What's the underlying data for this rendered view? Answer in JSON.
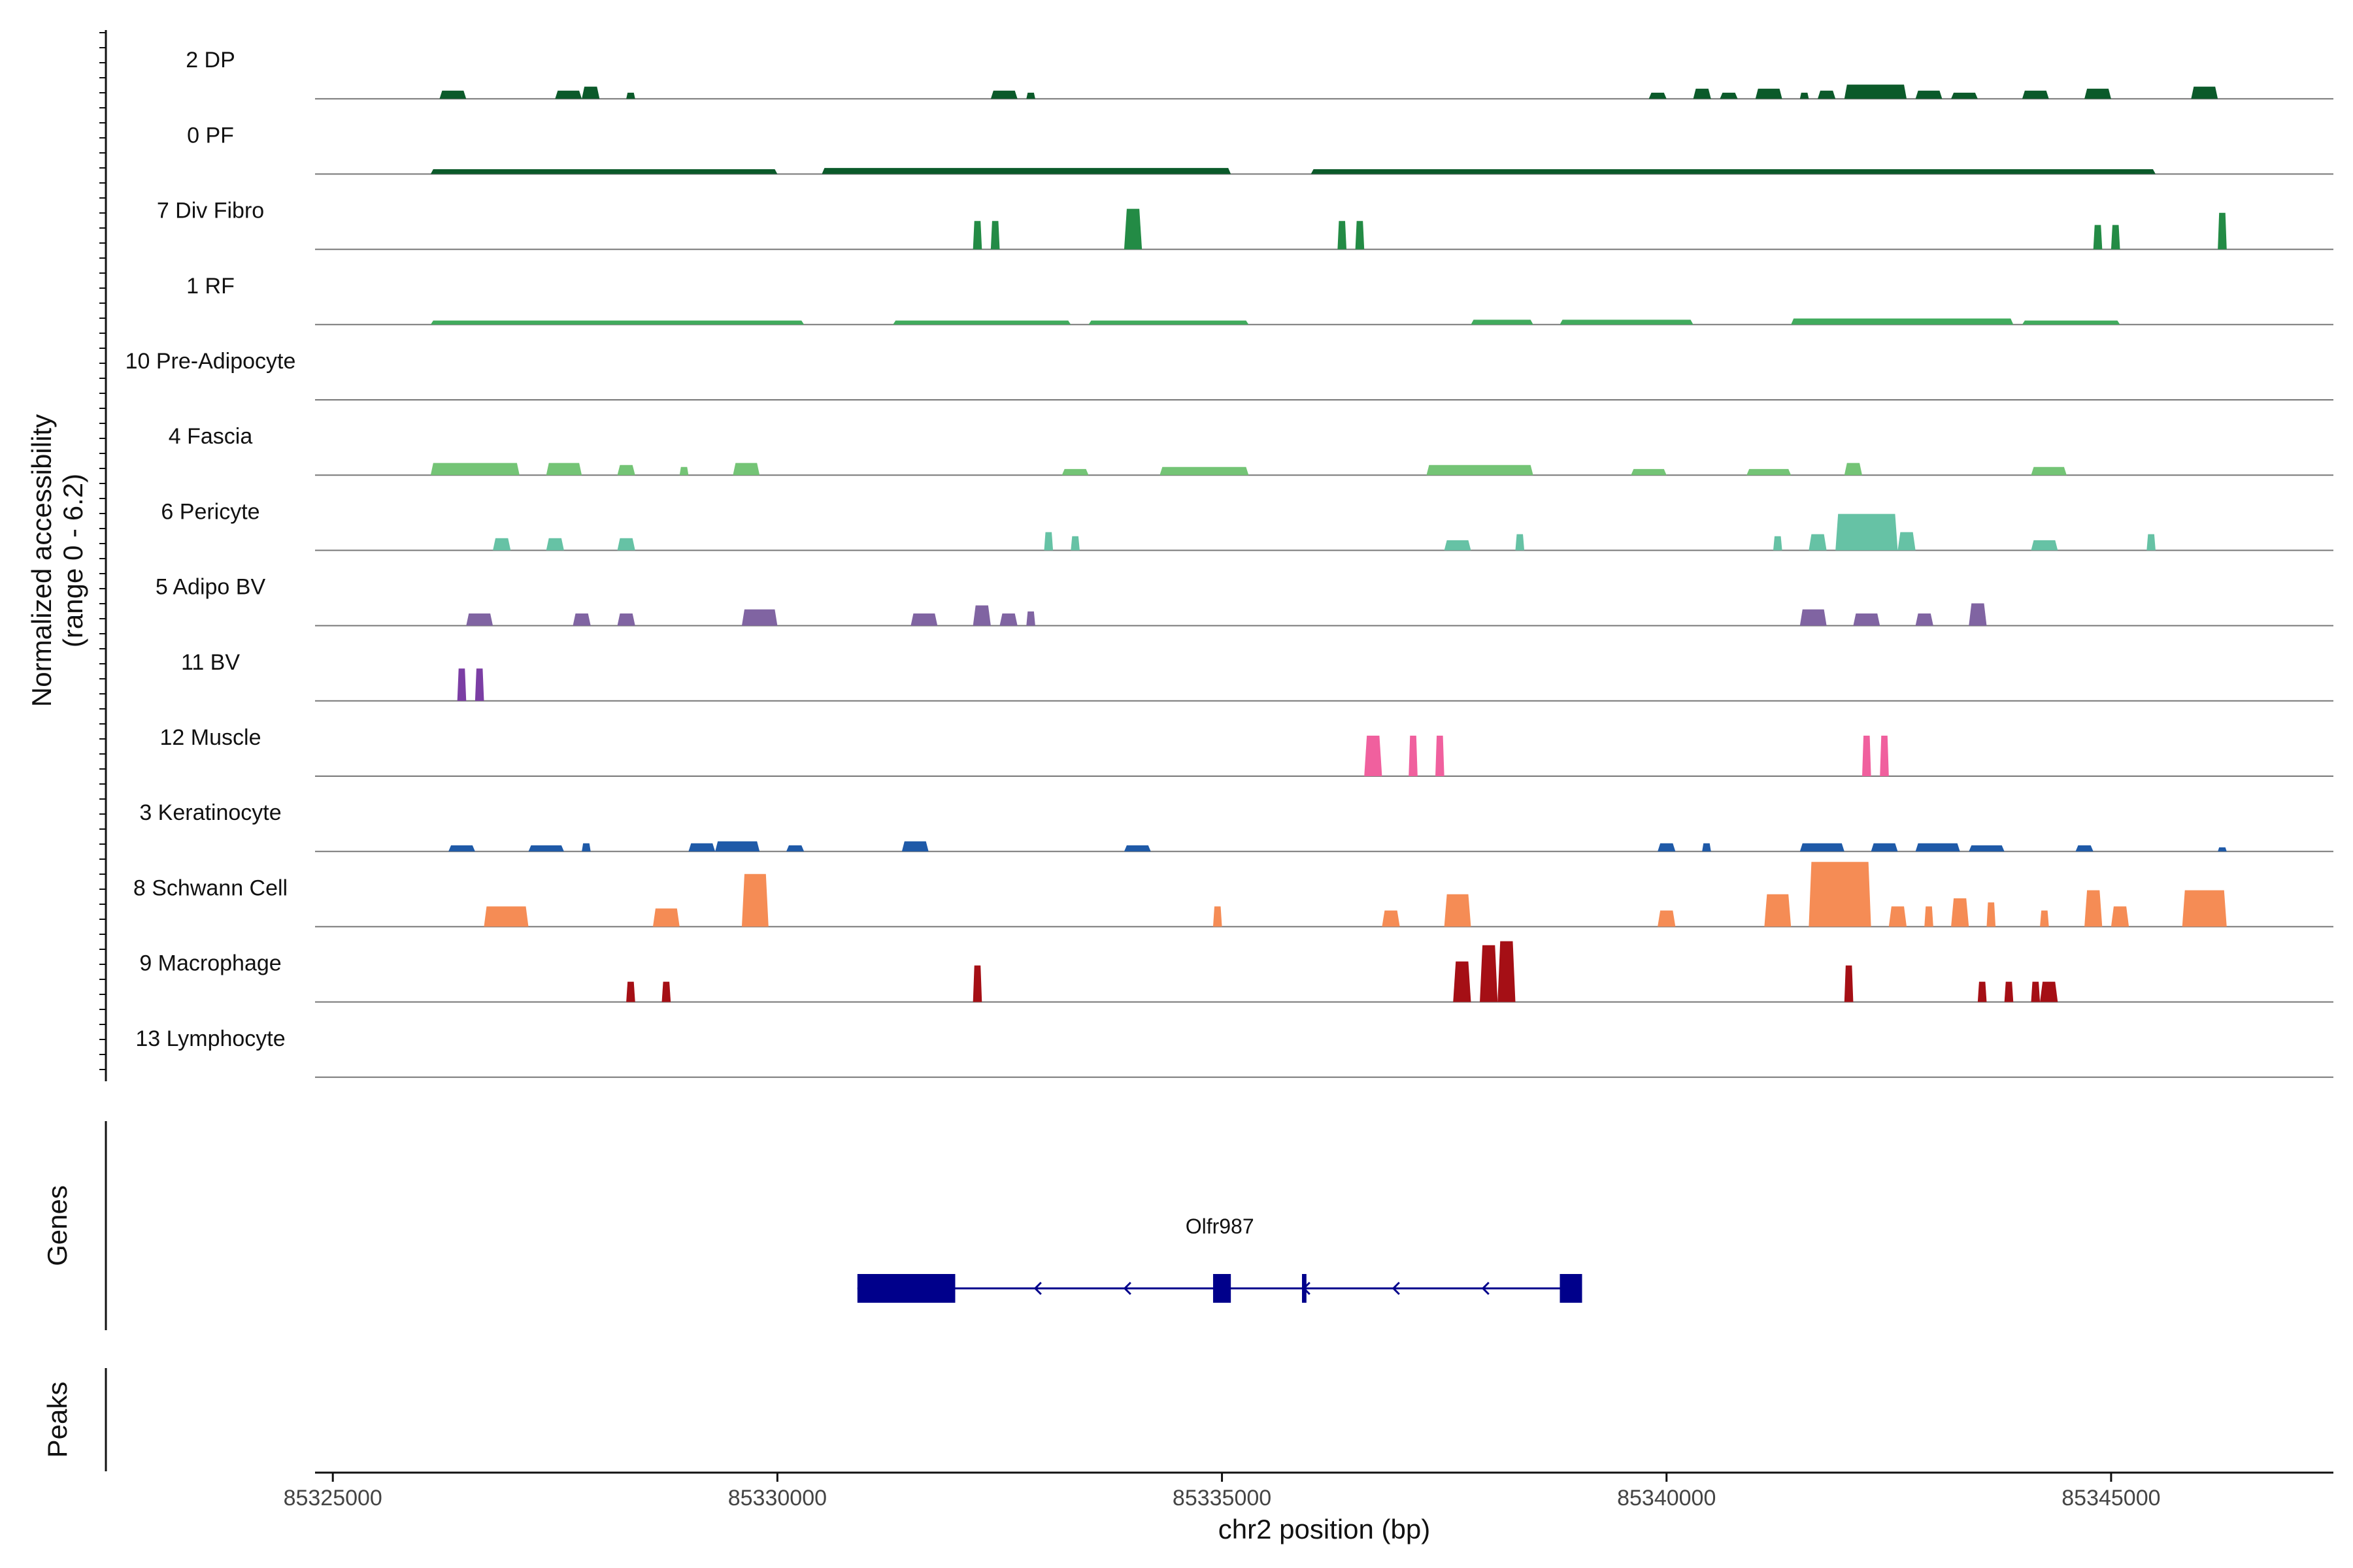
{
  "chart_data": {
    "type": "area",
    "title": "",
    "xlabel": "chr2 position (bp)",
    "ylabel": "Normalized accessibility",
    "ylabel_range": "(range 0 - 6.2)",
    "xlim": [
      85324800,
      85347500
    ],
    "xticks": [
      85325000,
      85330000,
      85335000,
      85340000,
      85345000
    ],
    "xtick_labels": [
      "85325000",
      "85330000",
      "85335000",
      "85340000",
      "85345000"
    ],
    "tracks": [
      {
        "name": "2 DP",
        "color": "#0b5a2a",
        "peaks": [
          [
            85326200,
            85326500,
            0.2
          ],
          [
            85327500,
            85327800,
            0.2
          ],
          [
            85327800,
            85328000,
            0.3
          ],
          [
            85328300,
            85328400,
            0.15
          ],
          [
            85332400,
            85332700,
            0.2
          ],
          [
            85332800,
            85332900,
            0.15
          ],
          [
            85339800,
            85340000,
            0.15
          ],
          [
            85340300,
            85340500,
            0.25
          ],
          [
            85340600,
            85340800,
            0.15
          ],
          [
            85341000,
            85341300,
            0.25
          ],
          [
            85341500,
            85341600,
            0.15
          ],
          [
            85341700,
            85341900,
            0.2
          ],
          [
            85342000,
            85342700,
            0.35
          ],
          [
            85342800,
            85343100,
            0.2
          ],
          [
            85343200,
            85343500,
            0.15
          ],
          [
            85344000,
            85344300,
            0.2
          ],
          [
            85344700,
            85345000,
            0.25
          ],
          [
            85345900,
            85346200,
            0.3
          ]
        ]
      },
      {
        "name": "0 PF",
        "color": "#0b5a2a",
        "peaks": [
          [
            85326100,
            85330000,
            0.12
          ],
          [
            85330500,
            85335100,
            0.15
          ],
          [
            85336000,
            85345500,
            0.12
          ]
        ]
      },
      {
        "name": "7 Div Fibro",
        "color": "#238b45",
        "peaks": [
          [
            85332200,
            85332300,
            0.7
          ],
          [
            85332400,
            85332500,
            0.7
          ],
          [
            85333900,
            85334100,
            1.0
          ],
          [
            85336300,
            85336400,
            0.7
          ],
          [
            85336500,
            85336600,
            0.7
          ],
          [
            85344800,
            85344900,
            0.6
          ],
          [
            85345000,
            85345100,
            0.6
          ],
          [
            85346200,
            85346300,
            0.9
          ]
        ]
      },
      {
        "name": "1 RF",
        "color": "#41ab5d",
        "peaks": [
          [
            85326100,
            85330300,
            0.1
          ],
          [
            85331300,
            85333300,
            0.1
          ],
          [
            85333500,
            85335300,
            0.1
          ],
          [
            85337800,
            85338500,
            0.12
          ],
          [
            85338800,
            85340300,
            0.12
          ],
          [
            85341400,
            85343900,
            0.15
          ],
          [
            85344000,
            85345100,
            0.1
          ]
        ]
      },
      {
        "name": "10 Pre-Adipocyte",
        "color": "#74c476",
        "peaks": []
      },
      {
        "name": "4 Fascia",
        "color": "#74c476",
        "peaks": [
          [
            85326100,
            85327100,
            0.3
          ],
          [
            85327400,
            85327800,
            0.3
          ],
          [
            85328200,
            85328400,
            0.25
          ],
          [
            85328900,
            85329000,
            0.2
          ],
          [
            85329500,
            85329800,
            0.3
          ],
          [
            85333200,
            85333500,
            0.15
          ],
          [
            85334300,
            85335300,
            0.2
          ],
          [
            85337300,
            85338500,
            0.25
          ],
          [
            85339600,
            85340000,
            0.15
          ],
          [
            85340900,
            85341400,
            0.15
          ],
          [
            85342000,
            85342200,
            0.3
          ],
          [
            85344100,
            85344500,
            0.2
          ]
        ]
      },
      {
        "name": "6 Pericyte",
        "color": "#66c2a5",
        "peaks": [
          [
            85326800,
            85327000,
            0.3
          ],
          [
            85327400,
            85327600,
            0.3
          ],
          [
            85328200,
            85328400,
            0.3
          ],
          [
            85333000,
            85333100,
            0.45
          ],
          [
            85333300,
            85333400,
            0.35
          ],
          [
            85337500,
            85337800,
            0.25
          ],
          [
            85338300,
            85338400,
            0.4
          ],
          [
            85341200,
            85341300,
            0.35
          ],
          [
            85341600,
            85341800,
            0.4
          ],
          [
            85341900,
            85342600,
            0.9
          ],
          [
            85342600,
            85342800,
            0.45
          ],
          [
            85344100,
            85344400,
            0.25
          ],
          [
            85345400,
            85345500,
            0.4
          ]
        ]
      },
      {
        "name": "5 Adipo BV",
        "color": "#8064a2",
        "peaks": [
          [
            85326500,
            85326800,
            0.3
          ],
          [
            85327700,
            85327900,
            0.3
          ],
          [
            85328200,
            85328400,
            0.3
          ],
          [
            85329600,
            85330000,
            0.4
          ],
          [
            85331500,
            85331800,
            0.3
          ],
          [
            85332200,
            85332400,
            0.5
          ],
          [
            85332500,
            85332700,
            0.3
          ],
          [
            85332800,
            85332900,
            0.35
          ],
          [
            85341500,
            85341800,
            0.4
          ],
          [
            85342100,
            85342400,
            0.3
          ],
          [
            85342800,
            85343000,
            0.3
          ],
          [
            85343400,
            85343600,
            0.55
          ]
        ]
      },
      {
        "name": "11 BV",
        "color": "#7b3ea4",
        "peaks": [
          [
            85326400,
            85326500,
            0.8
          ],
          [
            85326600,
            85326700,
            0.8
          ]
        ]
      },
      {
        "name": "12 Muscle",
        "color": "#f0609e",
        "peaks": [
          [
            85336600,
            85336800,
            1.0
          ],
          [
            85337100,
            85337200,
            1.0
          ],
          [
            85337400,
            85337500,
            1.0
          ],
          [
            85342200,
            85342300,
            1.0
          ],
          [
            85342400,
            85342500,
            1.0
          ]
        ]
      },
      {
        "name": "3 Keratinocyte",
        "color": "#1f5aa8",
        "peaks": [
          [
            85326300,
            85326600,
            0.15
          ],
          [
            85327200,
            85327600,
            0.15
          ],
          [
            85327800,
            85327900,
            0.2
          ],
          [
            85329000,
            85329300,
            0.2
          ],
          [
            85329300,
            85329800,
            0.25
          ],
          [
            85330100,
            85330300,
            0.15
          ],
          [
            85331400,
            85331700,
            0.25
          ],
          [
            85333900,
            85334200,
            0.15
          ],
          [
            85339900,
            85340100,
            0.2
          ],
          [
            85340400,
            85340500,
            0.2
          ],
          [
            85341500,
            85342000,
            0.2
          ],
          [
            85342300,
            85342600,
            0.2
          ],
          [
            85342800,
            85343300,
            0.2
          ],
          [
            85343400,
            85343800,
            0.15
          ],
          [
            85344600,
            85344800,
            0.15
          ],
          [
            85346200,
            85346300,
            0.1
          ]
        ]
      },
      {
        "name": "8 Schwann Cell",
        "color": "#f58c55",
        "peaks": [
          [
            85326700,
            85327200,
            0.5
          ],
          [
            85328600,
            85328900,
            0.45
          ],
          [
            85329600,
            85329900,
            1.3
          ],
          [
            85334900,
            85335000,
            0.5
          ],
          [
            85336800,
            85337000,
            0.4
          ],
          [
            85337500,
            85337800,
            0.8
          ],
          [
            85339900,
            85340100,
            0.4
          ],
          [
            85341100,
            85341400,
            0.8
          ],
          [
            85341600,
            85342300,
            1.6
          ],
          [
            85342500,
            85342700,
            0.5
          ],
          [
            85342900,
            85343000,
            0.5
          ],
          [
            85343200,
            85343400,
            0.7
          ],
          [
            85343600,
            85343700,
            0.6
          ],
          [
            85344200,
            85344300,
            0.4
          ],
          [
            85344700,
            85344900,
            0.9
          ],
          [
            85345000,
            85345200,
            0.5
          ],
          [
            85345800,
            85346300,
            0.9
          ]
        ]
      },
      {
        "name": "9 Macrophage",
        "color": "#a50f15",
        "peaks": [
          [
            85328300,
            85328400,
            0.5
          ],
          [
            85328700,
            85328800,
            0.5
          ],
          [
            85332200,
            85332300,
            0.9
          ],
          [
            85337600,
            85337800,
            1.0
          ],
          [
            85337900,
            85338100,
            1.4
          ],
          [
            85338100,
            85338300,
            1.5
          ],
          [
            85342000,
            85342100,
            0.9
          ],
          [
            85343500,
            85343600,
            0.5
          ],
          [
            85343800,
            85343900,
            0.5
          ],
          [
            85344100,
            85344200,
            0.5
          ],
          [
            85344200,
            85344400,
            0.5
          ]
        ]
      },
      {
        "name": "13 Lymphocyte",
        "color": "#a50f15",
        "peaks": []
      }
    ],
    "genes_panel_label": "Genes",
    "peaks_panel_label": "Peaks",
    "gene": {
      "name": "Olfr987",
      "start": 85330900,
      "end": 85339050,
      "strand": "-",
      "exons": [
        [
          85330900,
          85332000
        ],
        [
          85334900,
          85335100
        ],
        [
          85335900,
          85335950
        ],
        [
          85338800,
          85339050
        ]
      ]
    }
  }
}
